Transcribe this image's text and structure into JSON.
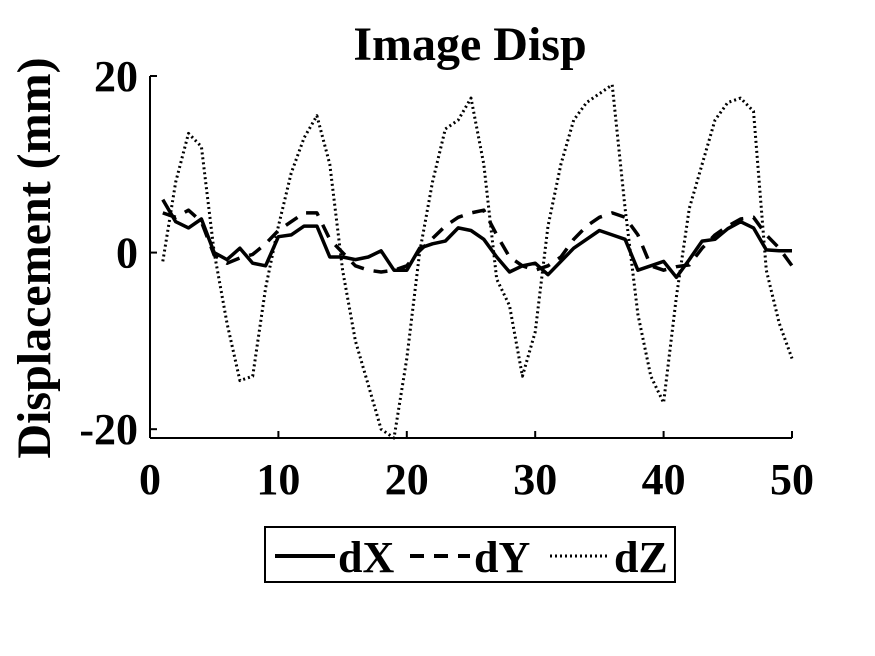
{
  "chart_data": {
    "type": "line",
    "title": "Image Disp",
    "xlabel": "",
    "ylabel": "Displacement (mm)",
    "xlim": [
      0,
      50
    ],
    "ylim": [
      -21,
      20
    ],
    "xticks": [
      0,
      10,
      20,
      30,
      40,
      50
    ],
    "yticks": [
      -20,
      0,
      20
    ],
    "grid": false,
    "legend": "bottom-outside",
    "series": [
      {
        "name": "dX",
        "style": "solid",
        "x": [
          1,
          2,
          3,
          4,
          5,
          6,
          7,
          8,
          9,
          10,
          11,
          12,
          13,
          14,
          15,
          16,
          17,
          18,
          19,
          20,
          21,
          22,
          23,
          24,
          25,
          26,
          27,
          28,
          29,
          30,
          31,
          32,
          33,
          34,
          35,
          36,
          37,
          38,
          39,
          40,
          41,
          42,
          43,
          44,
          45,
          46,
          47,
          48,
          49,
          50
        ],
        "y": [
          6,
          3.5,
          2.8,
          3.8,
          0,
          -0.8,
          0.5,
          -1.2,
          -1.5,
          1.8,
          2,
          3,
          3,
          -0.5,
          -0.5,
          -0.8,
          -0.5,
          0.2,
          -2,
          -2,
          0.5,
          1,
          1.3,
          2.8,
          2.5,
          1.5,
          -0.5,
          -2.2,
          -1.5,
          -1.2,
          -2.5,
          -1,
          0.5,
          1.5,
          2.5,
          2,
          1.5,
          -2,
          -1.5,
          -1,
          -2.8,
          -0.8,
          1.3,
          1.5,
          2.7,
          3.5,
          2.8,
          0.3,
          0.2,
          0.2
        ]
      },
      {
        "name": "dY",
        "style": "dashed",
        "x": [
          1,
          2,
          3,
          4,
          5,
          6,
          7,
          8,
          9,
          10,
          11,
          12,
          13,
          14,
          15,
          16,
          17,
          18,
          19,
          20,
          21,
          22,
          23,
          24,
          25,
          26,
          27,
          28,
          29,
          30,
          31,
          32,
          33,
          34,
          35,
          36,
          37,
          38,
          39,
          40,
          41,
          42,
          43,
          44,
          45,
          46,
          47,
          48,
          49,
          50
        ],
        "y": [
          4.5,
          4,
          4.8,
          3.5,
          -0.3,
          -1.2,
          -0.6,
          -0.2,
          1,
          2.5,
          3.5,
          4.5,
          4.5,
          1.5,
          0,
          -1.5,
          -2,
          -2.2,
          -2,
          -1.5,
          0.2,
          1.6,
          3,
          4,
          4.5,
          4.8,
          2,
          -0.5,
          -1.5,
          -2,
          -1.5,
          -0.5,
          1.5,
          3,
          4,
          4.5,
          4,
          2,
          -1.5,
          -2,
          -1.6,
          -1.4,
          0.5,
          2,
          3,
          3.8,
          4,
          2,
          0.5,
          -1.5
        ]
      },
      {
        "name": "dZ",
        "style": "dotted",
        "x": [
          1,
          2,
          3,
          4,
          5,
          6,
          7,
          8,
          9,
          10,
          11,
          12,
          13,
          14,
          15,
          16,
          17,
          18,
          19,
          20,
          21,
          22,
          23,
          24,
          25,
          26,
          27,
          28,
          29,
          30,
          31,
          32,
          33,
          34,
          35,
          36,
          37,
          38,
          39,
          40,
          41,
          42,
          43,
          44,
          45,
          46,
          47,
          48,
          49,
          50
        ],
        "y": [
          -1,
          8,
          13.5,
          12,
          0,
          -8,
          -14.5,
          -14,
          -4,
          3,
          9,
          13,
          15.5,
          10,
          -2,
          -10,
          -15,
          -20,
          -21,
          -12,
          0,
          8,
          14,
          15,
          17.5,
          10,
          -3,
          -6,
          -14,
          -9,
          3,
          10,
          15,
          17,
          18,
          19,
          5,
          -7,
          -14,
          -17,
          -5,
          5,
          10,
          15,
          17,
          17.5,
          16,
          -2,
          -8,
          -12
        ]
      }
    ]
  }
}
